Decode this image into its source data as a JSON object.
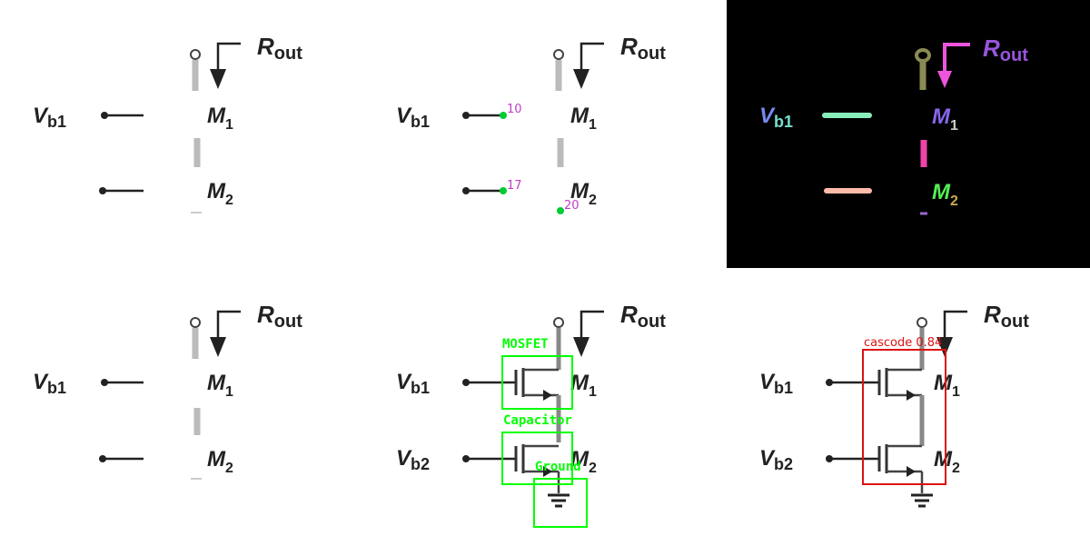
{
  "labels": {
    "r_main": "R",
    "r_sub": "out",
    "v_main": "V",
    "vb1_sub": "b1",
    "vb2_sub": "b2",
    "m_main": "M",
    "m1_sub": "1",
    "m2_sub": "2"
  },
  "keypoints": [
    {
      "id": "10"
    },
    {
      "id": "17"
    },
    {
      "id": "20"
    }
  ],
  "detections": [
    {
      "label": "MOSFET"
    },
    {
      "label": "Capacitor"
    },
    {
      "label": "Ground"
    }
  ],
  "prediction": {
    "label": "cascode 0.84"
  },
  "colors": {
    "keypoint": "#00cc33",
    "keypoint_text": "#c03cc8",
    "detection_box": "#00ff00",
    "prediction_box": "#dd1111",
    "circuit": "#222222",
    "seg_background": "#000000"
  }
}
